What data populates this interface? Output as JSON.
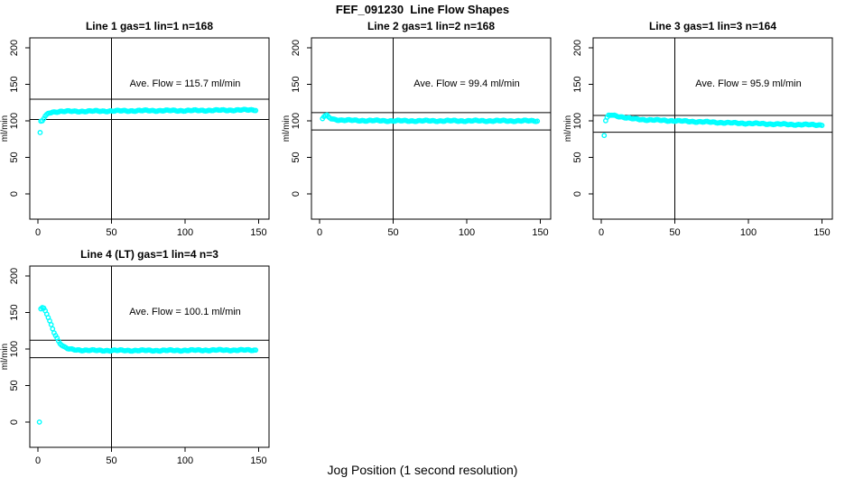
{
  "title": "FEF_091230  Line Flow Shapes",
  "xlabel": "Jog Position (1 second resolution)",
  "ylabel": "ml/min",
  "colors": {
    "points": "#00FFFF",
    "axis": "#000000",
    "background": "#FFFFFF"
  },
  "chart_data": [
    {
      "type": "scatter",
      "title": "Line 1 gas=1 lin=1 n=168",
      "line": 1,
      "gas": 1,
      "lin": 1,
      "n": 168,
      "annotation": "Ave. Flow =  115.7  ml/min",
      "ave_flow": 115.7,
      "ylabel": "ml/min",
      "xticks": [
        0,
        50,
        100,
        150
      ],
      "yticks": [
        0,
        50,
        100,
        150,
        200
      ],
      "xlim": [
        0,
        157
      ],
      "ylim": [
        -17,
        213
      ],
      "vline_x": 50,
      "hlines": [
        129.6,
        101.8
      ],
      "outliers": [
        [
          1.5,
          84
        ]
      ],
      "series_keypoints": [
        [
          2,
          99
        ],
        [
          3,
          100
        ],
        [
          4,
          103
        ],
        [
          5,
          106
        ],
        [
          6,
          108
        ],
        [
          7,
          110
        ],
        [
          8,
          111
        ],
        [
          10,
          112
        ],
        [
          15,
          113
        ],
        [
          25,
          113
        ],
        [
          50,
          113.5
        ],
        [
          75,
          114
        ],
        [
          100,
          114
        ],
        [
          125,
          114.5
        ],
        [
          148,
          115
        ]
      ],
      "annotation_pos": [
        100,
        152
      ]
    },
    {
      "type": "scatter",
      "title": "Line 2 gas=1 lin=2 n=168",
      "line": 2,
      "gas": 1,
      "lin": 2,
      "n": 168,
      "annotation": "Ave. Flow =  99.4  ml/min",
      "ave_flow": 99.4,
      "ylabel": "ml/min",
      "xticks": [
        0,
        50,
        100,
        150
      ],
      "yticks": [
        0,
        50,
        100,
        150,
        200
      ],
      "xlim": [
        0,
        157
      ],
      "ylim": [
        -17,
        213
      ],
      "vline_x": 50,
      "hlines": [
        111.3,
        87.5
      ],
      "outliers": [
        [
          2,
          103
        ]
      ],
      "series_keypoints": [
        [
          3,
          106
        ],
        [
          4,
          107
        ],
        [
          5,
          107
        ],
        [
          6,
          105
        ],
        [
          8,
          103
        ],
        [
          10,
          102
        ],
        [
          15,
          101
        ],
        [
          25,
          100.5
        ],
        [
          50,
          100
        ],
        [
          100,
          100
        ],
        [
          148,
          100
        ]
      ],
      "annotation_pos": [
        100,
        152
      ]
    },
    {
      "type": "scatter",
      "title": "Line 3 gas=1 lin=3 n=164",
      "line": 3,
      "gas": 1,
      "lin": 3,
      "n": 164,
      "annotation": "Ave. Flow =  95.9  ml/min",
      "ave_flow": 95.9,
      "ylabel": "ml/min",
      "xticks": [
        0,
        50,
        100,
        150
      ],
      "yticks": [
        0,
        50,
        100,
        150,
        200
      ],
      "xlim": [
        0,
        157
      ],
      "ylim": [
        -17,
        213
      ],
      "vline_x": 50,
      "hlines": [
        107.4,
        84.4
      ],
      "outliers": [
        [
          2,
          80
        ]
      ],
      "series_keypoints": [
        [
          3,
          100
        ],
        [
          4,
          104
        ],
        [
          5,
          107
        ],
        [
          7,
          108
        ],
        [
          10,
          107
        ],
        [
          15,
          105
        ],
        [
          20,
          103
        ],
        [
          30,
          101.5
        ],
        [
          50,
          100
        ],
        [
          70,
          98.5
        ],
        [
          90,
          97
        ],
        [
          110,
          96
        ],
        [
          130,
          95
        ],
        [
          148,
          94.5
        ],
        [
          150,
          94.5
        ]
      ],
      "annotation_pos": [
        100,
        152
      ]
    },
    {
      "type": "scatter",
      "title": "Line 4 (LT) gas=1 lin=4 n=3",
      "line": 4,
      "gas": 1,
      "lin": 4,
      "n": 3,
      "annotation": "Ave. Flow =  100.1  ml/min",
      "ave_flow": 100.1,
      "ylabel": "ml/min",
      "xticks": [
        0,
        50,
        100,
        150
      ],
      "yticks": [
        0,
        50,
        100,
        150,
        200
      ],
      "xlim": [
        0,
        157
      ],
      "ylim": [
        -17,
        213
      ],
      "vline_x": 50,
      "hlines": [
        112.1,
        88.1
      ],
      "outliers": [
        [
          1,
          0
        ]
      ],
      "series_keypoints": [
        [
          2,
          155
        ],
        [
          3,
          156
        ],
        [
          4,
          155
        ],
        [
          5,
          152
        ],
        [
          6,
          148
        ],
        [
          7,
          143
        ],
        [
          8,
          138
        ],
        [
          9,
          133
        ],
        [
          10,
          128
        ],
        [
          11,
          123
        ],
        [
          12,
          119
        ],
        [
          13,
          115
        ],
        [
          14,
          111
        ],
        [
          15,
          108
        ],
        [
          16,
          106
        ],
        [
          17,
          104
        ],
        [
          18,
          102.5
        ],
        [
          19,
          101.5
        ],
        [
          20,
          100.5
        ],
        [
          22,
          99.5
        ],
        [
          25,
          99
        ],
        [
          30,
          98.5
        ],
        [
          40,
          98
        ],
        [
          60,
          98
        ],
        [
          90,
          98
        ],
        [
          120,
          98.5
        ],
        [
          148,
          98.5
        ]
      ],
      "annotation_pos": [
        100,
        152
      ]
    }
  ]
}
